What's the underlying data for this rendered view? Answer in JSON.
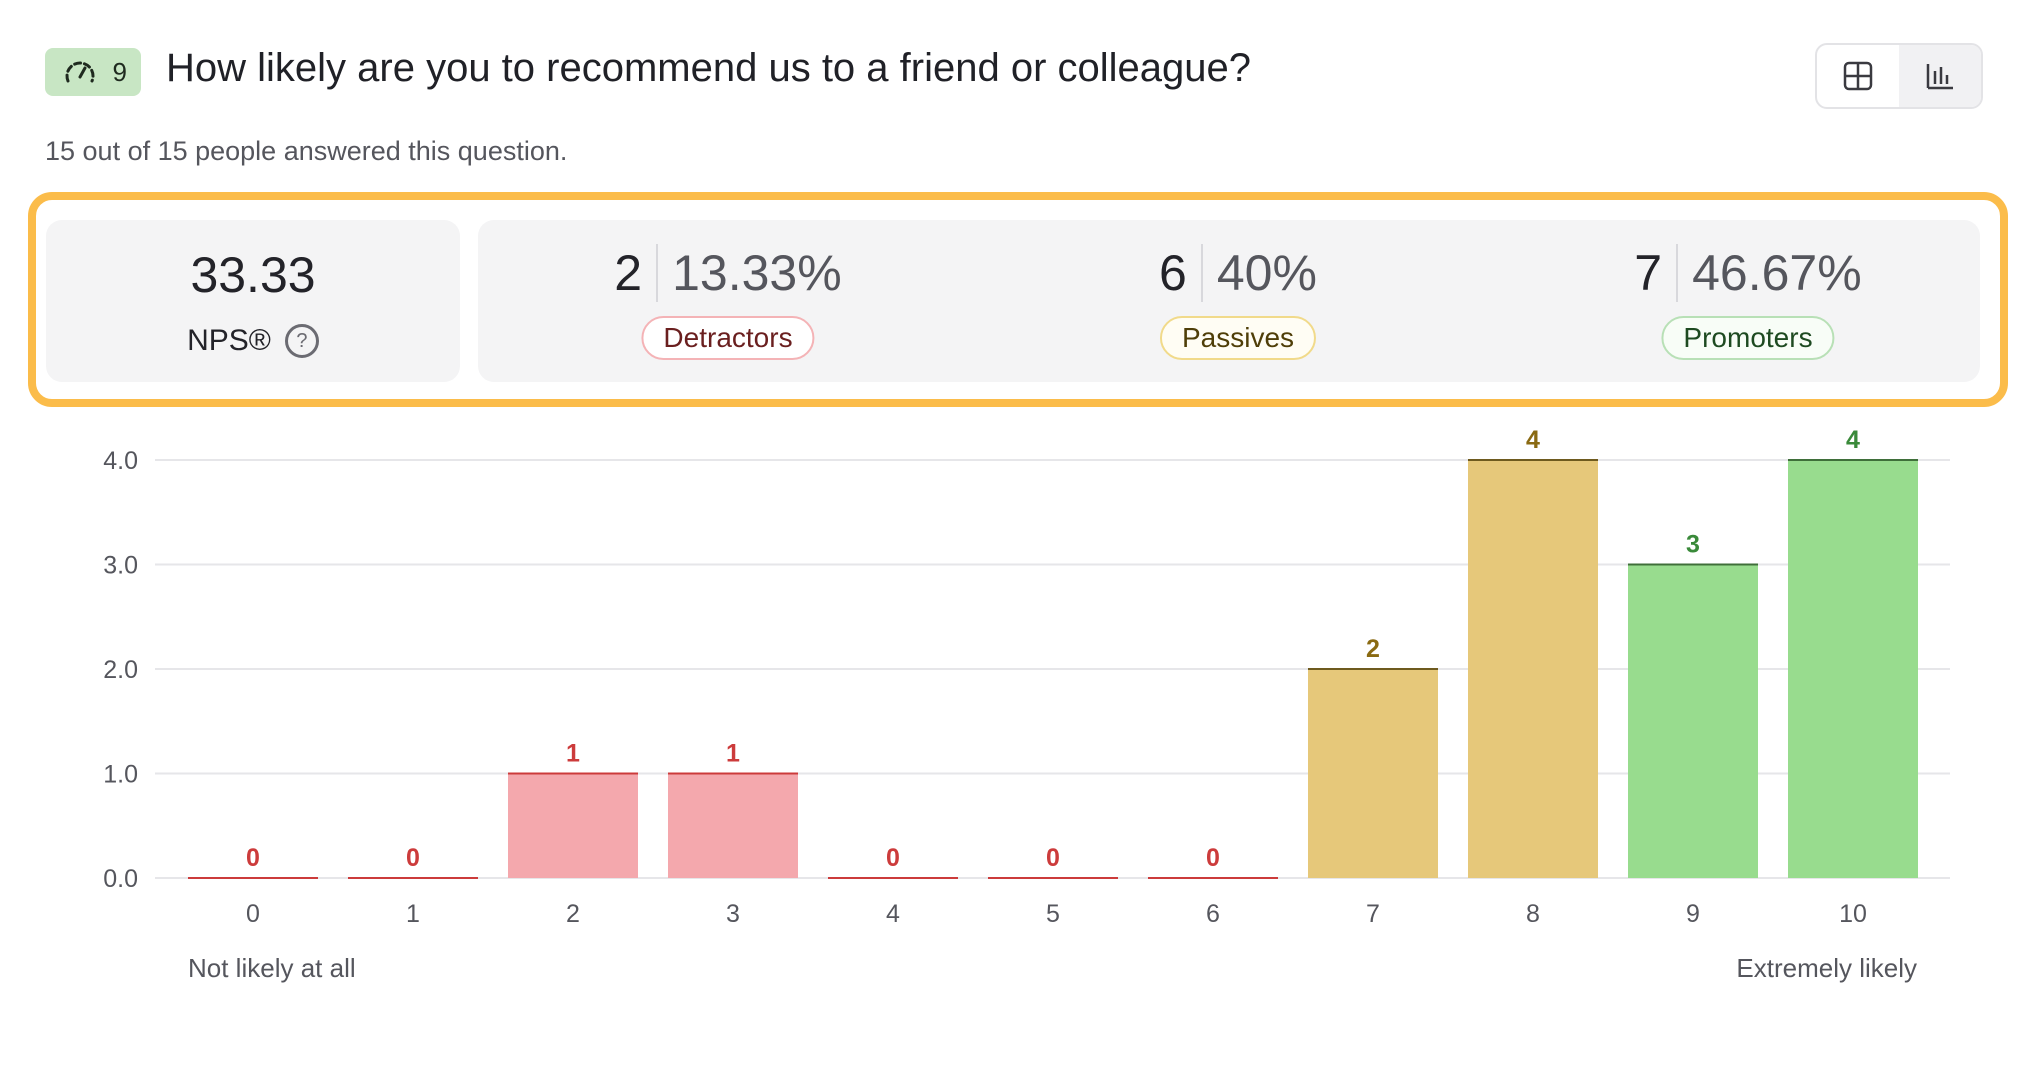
{
  "question": {
    "number": "9",
    "icon": "gauge-icon",
    "title": "How likely are you to recommend us to a friend or colleague?",
    "subtitle": "15 out of 15 people answered this question."
  },
  "view_toggle": [
    {
      "icon": "table-view-icon",
      "active": false
    },
    {
      "icon": "bar-chart-view-icon",
      "active": true
    }
  ],
  "summary": {
    "nps_value": "33.33",
    "nps_label": "NPS®",
    "help_icon": "question-circle-icon",
    "highlight_color": "#fbbc4a",
    "groups": [
      {
        "key": "det",
        "count": "2",
        "percent": "13.33%",
        "label": "Detractors"
      },
      {
        "key": "pas",
        "count": "6",
        "percent": "40%",
        "label": "Passives"
      },
      {
        "key": "pro",
        "count": "7",
        "percent": "46.67%",
        "label": "Promoters"
      }
    ]
  },
  "colors": {
    "detractor_fill": "#f4a8ad",
    "detractor_text": "#cc3b3b",
    "passive_fill": "#e6c87a",
    "passive_text": "#8a6a12",
    "promoter_fill": "#98dc8e",
    "promoter_text": "#3a8a3a"
  },
  "chart_data": {
    "type": "bar",
    "categories": [
      "0",
      "1",
      "2",
      "3",
      "4",
      "5",
      "6",
      "7",
      "8",
      "9",
      "10"
    ],
    "values": [
      0,
      0,
      1,
      1,
      0,
      0,
      0,
      2,
      4,
      3,
      4
    ],
    "groups": [
      "det",
      "det",
      "det",
      "det",
      "det",
      "det",
      "det",
      "pas",
      "pas",
      "pro",
      "pro"
    ],
    "ylim": [
      0,
      4
    ],
    "yticks": [
      "0.0",
      "1.0",
      "2.0",
      "3.0",
      "4.0"
    ],
    "grid": true,
    "x_start_label": "Not likely at all",
    "x_end_label": "Extremely likely"
  }
}
